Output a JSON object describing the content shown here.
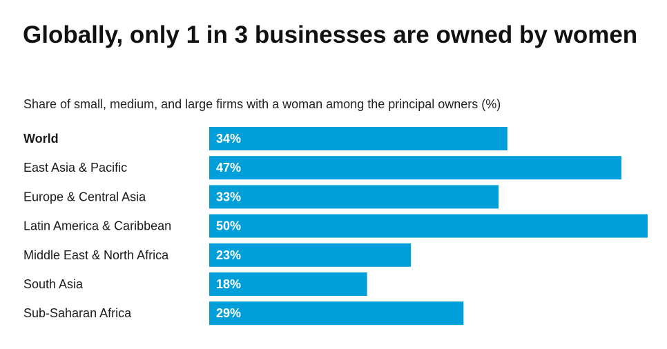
{
  "chart_data": {
    "type": "bar",
    "orientation": "horizontal",
    "title": "Globally, only 1 in 3 businesses are owned by women",
    "subtitle": "Share of small, medium, and large firms with a woman among the principal owners (%)",
    "categories": [
      "World",
      "East Asia & Pacific",
      "Europe & Central Asia",
      "Latin America & Caribbean",
      "Middle East & North Africa",
      "South Asia",
      "Sub-Saharan Africa"
    ],
    "values": [
      34,
      47,
      33,
      50,
      23,
      18,
      29
    ],
    "data_labels": [
      "34%",
      "47%",
      "33%",
      "50%",
      "23%",
      "18%",
      "29%"
    ],
    "highlight_category": "World",
    "xlim": [
      0,
      50
    ],
    "grid": false,
    "legend": "none",
    "bar_color": "#009fda",
    "label_color": "#ffffff"
  }
}
